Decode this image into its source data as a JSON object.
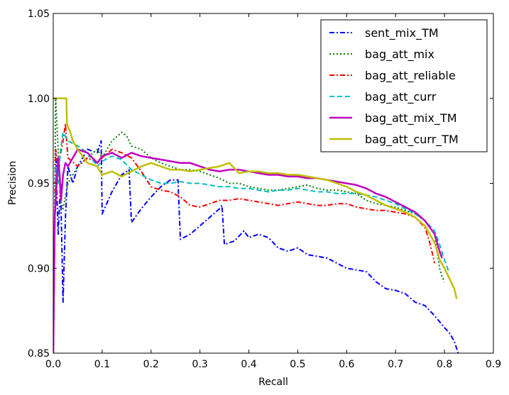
{
  "chart_data": {
    "type": "line",
    "title": "",
    "xlabel": "Recall",
    "ylabel": "Precision",
    "xlim": [
      0.0,
      0.9
    ],
    "ylim": [
      0.85,
      1.05
    ],
    "xticks": [
      "0.0",
      "0.1",
      "0.2",
      "0.3",
      "0.4",
      "0.5",
      "0.6",
      "0.7",
      "0.8",
      "0.9"
    ],
    "yticks": [
      "0.85",
      "0.90",
      "0.95",
      "1.00",
      "1.05"
    ],
    "grid": false,
    "legend": "top-right",
    "series": [
      {
        "name": "sent_mix_TM",
        "color": "#0000ff",
        "style": "dashdot",
        "width": 2,
        "points": [
          [
            0.0,
            0.85
          ],
          [
            0.005,
            0.97
          ],
          [
            0.01,
            0.92
          ],
          [
            0.015,
            0.95
          ],
          [
            0.02,
            0.88
          ],
          [
            0.025,
            0.93
          ],
          [
            0.03,
            0.96
          ],
          [
            0.04,
            0.95
          ],
          [
            0.05,
            0.96
          ],
          [
            0.07,
            0.97
          ],
          [
            0.09,
            0.968
          ],
          [
            0.098,
            0.975
          ],
          [
            0.1,
            0.932
          ],
          [
            0.12,
            0.945
          ],
          [
            0.14,
            0.955
          ],
          [
            0.155,
            0.958
          ],
          [
            0.16,
            0.927
          ],
          [
            0.18,
            0.935
          ],
          [
            0.2,
            0.942
          ],
          [
            0.22,
            0.948
          ],
          [
            0.24,
            0.952
          ],
          [
            0.255,
            0.952
          ],
          [
            0.26,
            0.917
          ],
          [
            0.28,
            0.92
          ],
          [
            0.3,
            0.925
          ],
          [
            0.32,
            0.93
          ],
          [
            0.34,
            0.935
          ],
          [
            0.345,
            0.937
          ],
          [
            0.35,
            0.914
          ],
          [
            0.37,
            0.916
          ],
          [
            0.39,
            0.922
          ],
          [
            0.4,
            0.918
          ],
          [
            0.42,
            0.92
          ],
          [
            0.44,
            0.918
          ],
          [
            0.46,
            0.912
          ],
          [
            0.48,
            0.91
          ],
          [
            0.5,
            0.912
          ],
          [
            0.52,
            0.908
          ],
          [
            0.54,
            0.907
          ],
          [
            0.56,
            0.906
          ],
          [
            0.58,
            0.903
          ],
          [
            0.6,
            0.9
          ],
          [
            0.62,
            0.899
          ],
          [
            0.64,
            0.898
          ],
          [
            0.66,
            0.892
          ],
          [
            0.68,
            0.888
          ],
          [
            0.7,
            0.887
          ],
          [
            0.72,
            0.885
          ],
          [
            0.74,
            0.88
          ],
          [
            0.76,
            0.878
          ],
          [
            0.78,
            0.872
          ],
          [
            0.8,
            0.865
          ],
          [
            0.81,
            0.862
          ],
          [
            0.82,
            0.857
          ],
          [
            0.828,
            0.85
          ]
        ]
      },
      {
        "name": "bag_att_mix",
        "color": "#008000",
        "style": "dotted",
        "width": 2,
        "points": [
          [
            0.0,
            0.85
          ],
          [
            0.005,
            1.0
          ],
          [
            0.01,
            0.97
          ],
          [
            0.015,
            0.94
          ],
          [
            0.02,
            0.935
          ],
          [
            0.03,
            0.95
          ],
          [
            0.05,
            0.96
          ],
          [
            0.07,
            0.965
          ],
          [
            0.09,
            0.97
          ],
          [
            0.1,
            0.965
          ],
          [
            0.12,
            0.975
          ],
          [
            0.14,
            0.98
          ],
          [
            0.15,
            0.978
          ],
          [
            0.16,
            0.972
          ],
          [
            0.18,
            0.97
          ],
          [
            0.2,
            0.965
          ],
          [
            0.22,
            0.962
          ],
          [
            0.24,
            0.96
          ],
          [
            0.26,
            0.958
          ],
          [
            0.28,
            0.958
          ],
          [
            0.3,
            0.957
          ],
          [
            0.32,
            0.955
          ],
          [
            0.34,
            0.953
          ],
          [
            0.36,
            0.95
          ],
          [
            0.38,
            0.95
          ],
          [
            0.4,
            0.948
          ],
          [
            0.42,
            0.947
          ],
          [
            0.44,
            0.946
          ],
          [
            0.46,
            0.946
          ],
          [
            0.48,
            0.947
          ],
          [
            0.5,
            0.948
          ],
          [
            0.52,
            0.949
          ],
          [
            0.54,
            0.947
          ],
          [
            0.56,
            0.946
          ],
          [
            0.58,
            0.946
          ],
          [
            0.6,
            0.945
          ],
          [
            0.62,
            0.944
          ],
          [
            0.64,
            0.94
          ],
          [
            0.66,
            0.938
          ],
          [
            0.68,
            0.937
          ],
          [
            0.7,
            0.936
          ],
          [
            0.72,
            0.934
          ],
          [
            0.74,
            0.932
          ],
          [
            0.76,
            0.928
          ],
          [
            0.78,
            0.92
          ],
          [
            0.79,
            0.9
          ],
          [
            0.795,
            0.895
          ],
          [
            0.8,
            0.892
          ]
        ]
      },
      {
        "name": "bag_att_reliable",
        "color": "#ff0000",
        "style": "dashdot",
        "width": 2,
        "points": [
          [
            0.0,
            0.85
          ],
          [
            0.005,
            0.97
          ],
          [
            0.01,
            0.96
          ],
          [
            0.02,
            0.975
          ],
          [
            0.025,
            0.985
          ],
          [
            0.03,
            0.965
          ],
          [
            0.05,
            0.96
          ],
          [
            0.07,
            0.965
          ],
          [
            0.09,
            0.962
          ],
          [
            0.1,
            0.965
          ],
          [
            0.12,
            0.97
          ],
          [
            0.14,
            0.968
          ],
          [
            0.16,
            0.965
          ],
          [
            0.18,
            0.957
          ],
          [
            0.2,
            0.948
          ],
          [
            0.22,
            0.946
          ],
          [
            0.24,
            0.945
          ],
          [
            0.26,
            0.942
          ],
          [
            0.28,
            0.937
          ],
          [
            0.3,
            0.936
          ],
          [
            0.32,
            0.938
          ],
          [
            0.34,
            0.94
          ],
          [
            0.36,
            0.94
          ],
          [
            0.38,
            0.941
          ],
          [
            0.4,
            0.94
          ],
          [
            0.42,
            0.939
          ],
          [
            0.44,
            0.938
          ],
          [
            0.46,
            0.937
          ],
          [
            0.48,
            0.938
          ],
          [
            0.5,
            0.939
          ],
          [
            0.52,
            0.938
          ],
          [
            0.54,
            0.937
          ],
          [
            0.56,
            0.937
          ],
          [
            0.58,
            0.938
          ],
          [
            0.6,
            0.938
          ],
          [
            0.62,
            0.936
          ],
          [
            0.64,
            0.935
          ],
          [
            0.66,
            0.934
          ],
          [
            0.68,
            0.934
          ],
          [
            0.7,
            0.933
          ],
          [
            0.72,
            0.932
          ],
          [
            0.74,
            0.93
          ],
          [
            0.76,
            0.924
          ],
          [
            0.77,
            0.915
          ],
          [
            0.78,
            0.903
          ]
        ]
      },
      {
        "name": "bag_att_curr",
        "color": "#00bfbf",
        "style": "dashed",
        "width": 2,
        "points": [
          [
            0.0,
            0.85
          ],
          [
            0.005,
            0.96
          ],
          [
            0.01,
            0.95
          ],
          [
            0.015,
            0.97
          ],
          [
            0.02,
            0.98
          ],
          [
            0.03,
            0.975
          ],
          [
            0.05,
            0.972
          ],
          [
            0.07,
            0.968
          ],
          [
            0.09,
            0.96
          ],
          [
            0.1,
            0.963
          ],
          [
            0.12,
            0.966
          ],
          [
            0.14,
            0.964
          ],
          [
            0.16,
            0.958
          ],
          [
            0.18,
            0.955
          ],
          [
            0.2,
            0.952
          ],
          [
            0.22,
            0.95
          ],
          [
            0.24,
            0.95
          ],
          [
            0.26,
            0.951
          ],
          [
            0.28,
            0.95
          ],
          [
            0.3,
            0.95
          ],
          [
            0.32,
            0.949
          ],
          [
            0.34,
            0.948
          ],
          [
            0.36,
            0.948
          ],
          [
            0.38,
            0.947
          ],
          [
            0.4,
            0.947
          ],
          [
            0.42,
            0.946
          ],
          [
            0.44,
            0.945
          ],
          [
            0.46,
            0.946
          ],
          [
            0.48,
            0.946
          ],
          [
            0.5,
            0.947
          ],
          [
            0.52,
            0.946
          ],
          [
            0.54,
            0.945
          ],
          [
            0.56,
            0.945
          ],
          [
            0.58,
            0.944
          ],
          [
            0.6,
            0.944
          ],
          [
            0.62,
            0.944
          ],
          [
            0.64,
            0.943
          ],
          [
            0.66,
            0.942
          ],
          [
            0.68,
            0.94
          ],
          [
            0.7,
            0.938
          ],
          [
            0.72,
            0.935
          ],
          [
            0.74,
            0.932
          ],
          [
            0.76,
            0.928
          ],
          [
            0.78,
            0.922
          ],
          [
            0.79,
            0.914
          ],
          [
            0.8,
            0.905
          ],
          [
            0.81,
            0.897
          ]
        ]
      },
      {
        "name": "bag_att_mix_TM",
        "color": "#bf00bf",
        "style": "solid",
        "width": 2.5,
        "points": [
          [
            0.0,
            0.85
          ],
          [
            0.003,
            0.93
          ],
          [
            0.007,
            0.95
          ],
          [
            0.01,
            0.965
          ],
          [
            0.013,
            0.955
          ],
          [
            0.016,
            0.94
          ],
          [
            0.02,
            0.955
          ],
          [
            0.025,
            0.962
          ],
          [
            0.03,
            0.96
          ],
          [
            0.05,
            0.97
          ],
          [
            0.07,
            0.968
          ],
          [
            0.09,
            0.962
          ],
          [
            0.1,
            0.966
          ],
          [
            0.12,
            0.968
          ],
          [
            0.14,
            0.965
          ],
          [
            0.16,
            0.968
          ],
          [
            0.18,
            0.966
          ],
          [
            0.2,
            0.965
          ],
          [
            0.22,
            0.964
          ],
          [
            0.24,
            0.963
          ],
          [
            0.26,
            0.962
          ],
          [
            0.28,
            0.962
          ],
          [
            0.3,
            0.96
          ],
          [
            0.32,
            0.958
          ],
          [
            0.34,
            0.957
          ],
          [
            0.36,
            0.958
          ],
          [
            0.38,
            0.958
          ],
          [
            0.4,
            0.957
          ],
          [
            0.42,
            0.956
          ],
          [
            0.44,
            0.955
          ],
          [
            0.46,
            0.955
          ],
          [
            0.48,
            0.954
          ],
          [
            0.5,
            0.954
          ],
          [
            0.52,
            0.953
          ],
          [
            0.54,
            0.953
          ],
          [
            0.56,
            0.952
          ],
          [
            0.58,
            0.951
          ],
          [
            0.6,
            0.95
          ],
          [
            0.62,
            0.949
          ],
          [
            0.64,
            0.947
          ],
          [
            0.66,
            0.944
          ],
          [
            0.68,
            0.942
          ],
          [
            0.7,
            0.939
          ],
          [
            0.72,
            0.936
          ],
          [
            0.74,
            0.933
          ],
          [
            0.76,
            0.928
          ],
          [
            0.78,
            0.92
          ],
          [
            0.79,
            0.91
          ],
          [
            0.795,
            0.906
          ]
        ]
      },
      {
        "name": "bag_att_curr_TM",
        "color": "#bfbf00",
        "style": "solid",
        "width": 2.5,
        "points": [
          [
            0.0,
            1.0
          ],
          [
            0.027,
            1.0
          ],
          [
            0.028,
            0.985
          ],
          [
            0.035,
            0.98
          ],
          [
            0.04,
            0.975
          ],
          [
            0.05,
            0.97
          ],
          [
            0.06,
            0.966
          ],
          [
            0.07,
            0.962
          ],
          [
            0.09,
            0.96
          ],
          [
            0.1,
            0.955
          ],
          [
            0.12,
            0.957
          ],
          [
            0.14,
            0.954
          ],
          [
            0.16,
            0.957
          ],
          [
            0.18,
            0.96
          ],
          [
            0.2,
            0.962
          ],
          [
            0.22,
            0.96
          ],
          [
            0.24,
            0.958
          ],
          [
            0.26,
            0.958
          ],
          [
            0.28,
            0.957
          ],
          [
            0.3,
            0.958
          ],
          [
            0.32,
            0.959
          ],
          [
            0.34,
            0.96
          ],
          [
            0.36,
            0.962
          ],
          [
            0.38,
            0.956
          ],
          [
            0.4,
            0.957
          ],
          [
            0.42,
            0.957
          ],
          [
            0.44,
            0.956
          ],
          [
            0.46,
            0.956
          ],
          [
            0.48,
            0.955
          ],
          [
            0.5,
            0.955
          ],
          [
            0.52,
            0.954
          ],
          [
            0.54,
            0.953
          ],
          [
            0.56,
            0.952
          ],
          [
            0.58,
            0.95
          ],
          [
            0.6,
            0.948
          ],
          [
            0.62,
            0.945
          ],
          [
            0.64,
            0.943
          ],
          [
            0.66,
            0.94
          ],
          [
            0.68,
            0.937
          ],
          [
            0.7,
            0.935
          ],
          [
            0.72,
            0.933
          ],
          [
            0.74,
            0.93
          ],
          [
            0.76,
            0.925
          ],
          [
            0.78,
            0.915
          ],
          [
            0.79,
            0.905
          ],
          [
            0.8,
            0.9
          ],
          [
            0.81,
            0.894
          ],
          [
            0.82,
            0.888
          ],
          [
            0.825,
            0.882
          ]
        ]
      }
    ]
  }
}
